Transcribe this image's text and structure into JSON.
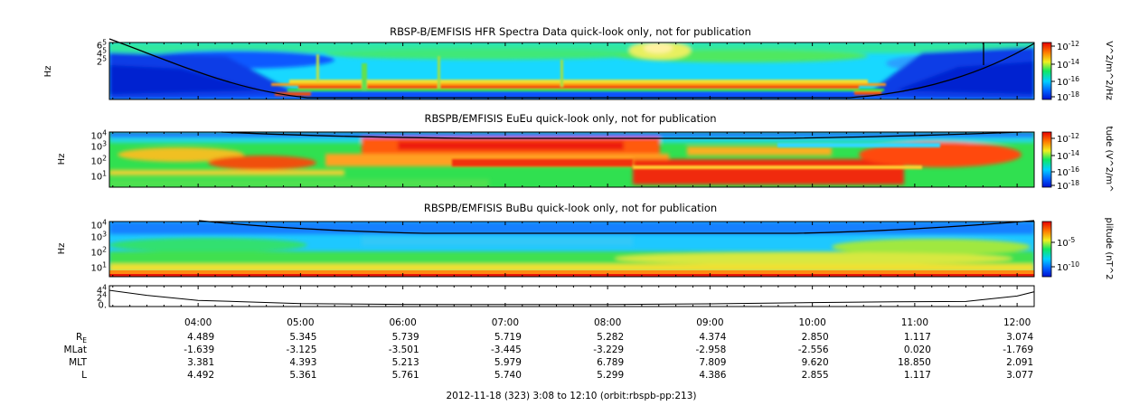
{
  "chart_data": [
    {
      "type": "heatmap",
      "title": "RBSP-B/EMFISIS  HFR Spectra Data quick-look only, not for publication",
      "ylabel": "Hz",
      "ytick_labels": [
        {
          "mant": "6",
          "exp": "5"
        },
        {
          "mant": "4",
          "exp": "5"
        },
        {
          "mant": "2",
          "exp": "5"
        }
      ],
      "colorbar_label": "V^2/m^2/Hz",
      "colorbar_ticks": [
        {
          "mant": "10",
          "exp": "-12"
        },
        {
          "mant": "10",
          "exp": "-14"
        },
        {
          "mant": "10",
          "exp": "-16"
        },
        {
          "mant": "10",
          "exp": "-18"
        }
      ]
    },
    {
      "type": "heatmap",
      "title": "RBSPB/EMFISIS  EuEu quick-look only, not for publication",
      "ylabel": "Hz",
      "ytick_labels": [
        {
          "mant": "10",
          "exp": "4"
        },
        {
          "mant": "10",
          "exp": "3"
        },
        {
          "mant": "10",
          "exp": "2"
        },
        {
          "mant": "10",
          "exp": "1"
        }
      ],
      "colorbar_label": "tude (V^2/m^",
      "colorbar_ticks": [
        {
          "mant": "10",
          "exp": "-12"
        },
        {
          "mant": "10",
          "exp": "-14"
        },
        {
          "mant": "10",
          "exp": "-16"
        },
        {
          "mant": "10",
          "exp": "-18"
        }
      ]
    },
    {
      "type": "heatmap",
      "title": "RBSPB/EMFISIS  BuBu quick-look only, not for publication",
      "ylabel": "Hz",
      "ytick_labels": [
        {
          "mant": "10",
          "exp": "4"
        },
        {
          "mant": "10",
          "exp": "3"
        },
        {
          "mant": "10",
          "exp": "2"
        },
        {
          "mant": "10",
          "exp": "1"
        }
      ],
      "colorbar_label": "plitude (nT^2",
      "colorbar_ticks": [
        {
          "mant": "10",
          "exp": "-5"
        },
        {
          "mant": "10",
          "exp": "-10"
        }
      ]
    },
    {
      "type": "line",
      "ytick_labels": [
        {
          "mant": "4",
          "exp": "4"
        },
        {
          "mant": "2",
          "exp": "4"
        },
        {
          "mant": "0.",
          "exp": ""
        }
      ],
      "x": [
        3.13,
        3.5,
        4.0,
        5.0,
        6.0,
        7.0,
        8.0,
        9.0,
        10.0,
        10.8,
        11.5,
        12.0,
        12.17
      ],
      "y": [
        40000,
        26000,
        12000,
        3200,
        900,
        400,
        700,
        2400,
        6000,
        8000,
        9000,
        24000,
        36000
      ]
    }
  ],
  "time_axis": {
    "tick_labels": [
      "04:00",
      "05:00",
      "06:00",
      "07:00",
      "08:00",
      "09:00",
      "10:00",
      "11:00",
      "12:00"
    ]
  },
  "ephemeris": {
    "rows": [
      {
        "label": "R",
        "sub": "E",
        "values": [
          "4.489",
          "5.345",
          "5.739",
          "5.719",
          "5.282",
          "4.374",
          "2.850",
          "1.117",
          "3.074"
        ]
      },
      {
        "label": "MLat",
        "sub": "",
        "values": [
          "-1.639",
          "-3.125",
          "-3.501",
          "-3.445",
          "-3.229",
          "-2.958",
          "-2.556",
          "0.020",
          "-1.769"
        ]
      },
      {
        "label": "MLT",
        "sub": "",
        "values": [
          "3.381",
          "4.393",
          "5.213",
          "5.979",
          "6.789",
          "7.809",
          "9.620",
          "18.850",
          "2.091"
        ]
      },
      {
        "label": "L",
        "sub": "",
        "values": [
          "4.492",
          "5.361",
          "5.761",
          "5.740",
          "5.299",
          "4.386",
          "2.855",
          "1.117",
          "3.077"
        ]
      }
    ]
  },
  "footer": "2012-11-18 (323) 3:08 to 12:10 (orbit:rbspb-pp:213)",
  "colors": {
    "deep_blue": "#0018c8",
    "blue": "#0a5cff",
    "cyan": "#00c8ff",
    "green": "#22e040",
    "yellow": "#f4e818",
    "orange": "#ff7a00",
    "red": "#f01010"
  }
}
